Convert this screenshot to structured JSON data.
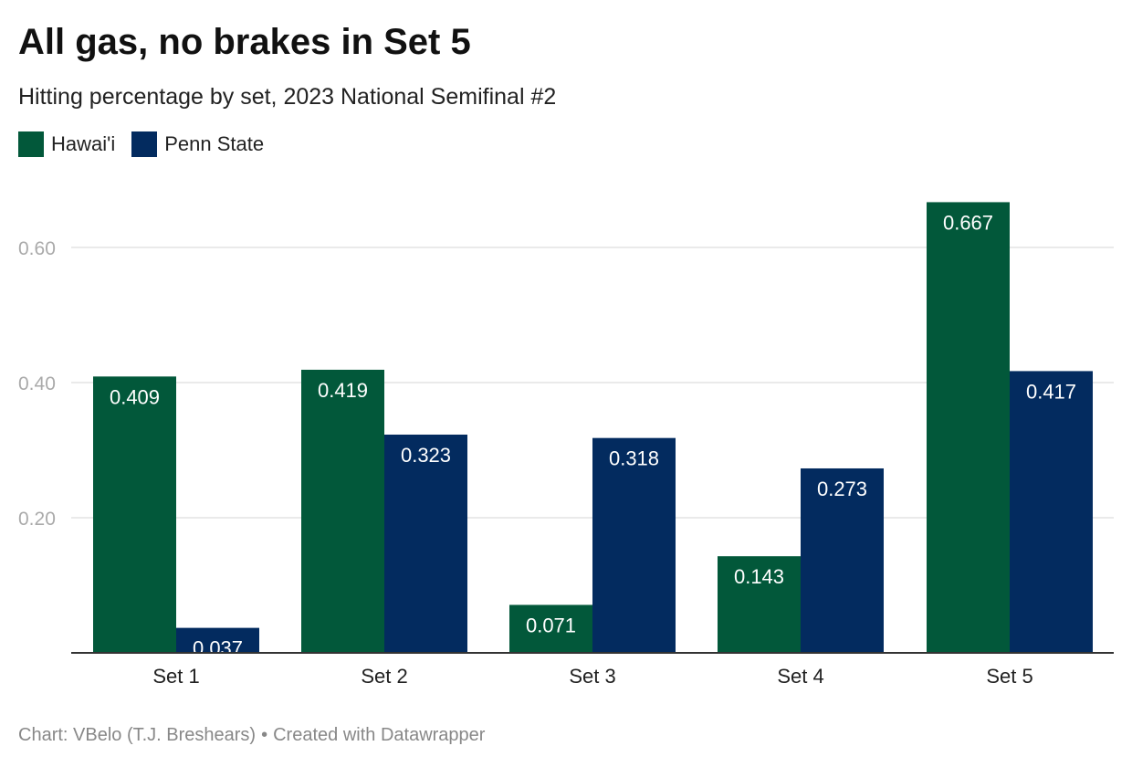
{
  "title": "All gas, no brakes in Set 5",
  "subtitle": "Hitting percentage by set, 2023 National Semifinal #2",
  "footer": {
    "source": "Chart: VBelo (T.J. Breshears)",
    "separator": "•",
    "credit": "Created with Datawrapper"
  },
  "chart_data": {
    "type": "bar",
    "categories": [
      "Set 1",
      "Set 2",
      "Set 3",
      "Set 4",
      "Set 5"
    ],
    "series": [
      {
        "name": "Hawai'i",
        "color": "#02583a",
        "values": [
          0.409,
          0.419,
          0.071,
          0.143,
          0.667
        ]
      },
      {
        "name": "Penn State",
        "color": "#032b5f",
        "values": [
          0.037,
          0.323,
          0.318,
          0.273,
          0.417
        ]
      }
    ],
    "value_labels": [
      [
        "0.409",
        "0.419",
        "0.071",
        "0.143",
        "0.667"
      ],
      [
        "0.037",
        "0.323",
        "0.318",
        "0.273",
        "0.417"
      ]
    ],
    "yticks": [
      0.2,
      0.4,
      0.6
    ],
    "ytick_labels": [
      "0.20",
      "0.40",
      "0.60"
    ],
    "ylim": [
      0,
      0.7
    ],
    "grid": true,
    "legend": "top-left",
    "title": "All gas, no brakes in Set 5",
    "subtitle": "Hitting percentage by set, 2023 National Semifinal #2",
    "xlabel": "",
    "ylabel": ""
  }
}
